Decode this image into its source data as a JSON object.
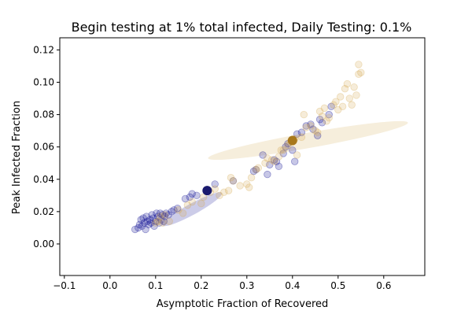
{
  "chart_data": {
    "type": "scatter",
    "title": "Begin testing at 1% total infected, Daily Testing: 0.1%",
    "xlabel": "Asymptotic Fraction of Recovered",
    "ylabel": "Peak Infected Fraction",
    "xlim": [
      -0.11,
      0.69
    ],
    "ylim": [
      -0.0195,
      0.1275
    ],
    "xticks": [
      -0.1,
      0.0,
      0.1,
      0.2,
      0.3,
      0.4,
      0.5,
      0.6
    ],
    "xtick_labels": [
      "−0.1",
      "0.0",
      "0.1",
      "0.2",
      "0.3",
      "0.4",
      "0.5",
      "0.6"
    ],
    "yticks": [
      0.0,
      0.02,
      0.04,
      0.06,
      0.08,
      0.1,
      0.12
    ],
    "ytick_labels": [
      "0.00",
      "0.02",
      "0.04",
      "0.06",
      "0.08",
      "0.10",
      "0.12"
    ],
    "grid": false,
    "legend": "none",
    "series": [
      {
        "color": "#00008b",
        "points": [
          [
            0.055,
            0.009
          ],
          [
            0.062,
            0.01
          ],
          [
            0.065,
            0.012
          ],
          [
            0.068,
            0.015
          ],
          [
            0.07,
            0.011
          ],
          [
            0.073,
            0.016
          ],
          [
            0.075,
            0.013
          ],
          [
            0.078,
            0.009
          ],
          [
            0.08,
            0.017
          ],
          [
            0.082,
            0.014
          ],
          [
            0.085,
            0.012
          ],
          [
            0.088,
            0.015
          ],
          [
            0.09,
            0.013
          ],
          [
            0.092,
            0.018
          ],
          [
            0.095,
            0.016
          ],
          [
            0.097,
            0.011
          ],
          [
            0.1,
            0.014
          ],
          [
            0.102,
            0.019
          ],
          [
            0.105,
            0.017
          ],
          [
            0.108,
            0.013
          ],
          [
            0.11,
            0.019
          ],
          [
            0.112,
            0.015
          ],
          [
            0.115,
            0.018
          ],
          [
            0.118,
            0.014
          ],
          [
            0.12,
            0.017
          ],
          [
            0.123,
            0.019
          ],
          [
            0.128,
            0.018
          ],
          [
            0.135,
            0.02
          ],
          [
            0.14,
            0.021
          ],
          [
            0.148,
            0.022
          ],
          [
            0.165,
            0.028
          ],
          [
            0.175,
            0.029
          ],
          [
            0.18,
            0.031
          ],
          [
            0.19,
            0.03
          ],
          [
            0.23,
            0.037
          ],
          [
            0.27,
            0.039
          ],
          [
            0.315,
            0.045
          ],
          [
            0.32,
            0.046
          ],
          [
            0.335,
            0.055
          ],
          [
            0.345,
            0.043
          ],
          [
            0.35,
            0.049
          ],
          [
            0.36,
            0.052
          ],
          [
            0.365,
            0.051
          ],
          [
            0.37,
            0.048
          ],
          [
            0.38,
            0.056
          ],
          [
            0.385,
            0.06
          ],
          [
            0.39,
            0.062
          ],
          [
            0.4,
            0.058
          ],
          [
            0.405,
            0.051
          ],
          [
            0.41,
            0.068
          ],
          [
            0.42,
            0.069
          ],
          [
            0.43,
            0.073
          ],
          [
            0.44,
            0.074
          ],
          [
            0.445,
            0.071
          ],
          [
            0.455,
            0.067
          ],
          [
            0.46,
            0.077
          ],
          [
            0.465,
            0.075
          ],
          [
            0.48,
            0.08
          ],
          [
            0.485,
            0.085
          ]
        ],
        "mean": [
          0.213,
          0.033
        ],
        "ellipse": {
          "center": [
            0.18,
            0.0215
          ],
          "semi_major": [
            0.245,
            0.0315
          ],
          "semi_minor_endpoint": [
            0.19,
            0.0195
          ]
        }
      },
      {
        "color": "#d4aa50",
        "points": [
          [
            0.1,
            0.013
          ],
          [
            0.105,
            0.014
          ],
          [
            0.11,
            0.017
          ],
          [
            0.115,
            0.013
          ],
          [
            0.12,
            0.018
          ],
          [
            0.13,
            0.014
          ],
          [
            0.15,
            0.021
          ],
          [
            0.16,
            0.019
          ],
          [
            0.17,
            0.024
          ],
          [
            0.18,
            0.026
          ],
          [
            0.2,
            0.025
          ],
          [
            0.205,
            0.029
          ],
          [
            0.22,
            0.032
          ],
          [
            0.23,
            0.034
          ],
          [
            0.24,
            0.03
          ],
          [
            0.25,
            0.032
          ],
          [
            0.26,
            0.033
          ],
          [
            0.265,
            0.041
          ],
          [
            0.27,
            0.039
          ],
          [
            0.285,
            0.036
          ],
          [
            0.3,
            0.037
          ],
          [
            0.305,
            0.035
          ],
          [
            0.31,
            0.041
          ],
          [
            0.32,
            0.046
          ],
          [
            0.325,
            0.047
          ],
          [
            0.34,
            0.05
          ],
          [
            0.345,
            0.053
          ],
          [
            0.355,
            0.052
          ],
          [
            0.36,
            0.051
          ],
          [
            0.37,
            0.054
          ],
          [
            0.375,
            0.058
          ],
          [
            0.38,
            0.058
          ],
          [
            0.39,
            0.061
          ],
          [
            0.395,
            0.063
          ],
          [
            0.4,
            0.064
          ],
          [
            0.405,
            0.065
          ],
          [
            0.41,
            0.055
          ],
          [
            0.42,
            0.066
          ],
          [
            0.425,
            0.08
          ],
          [
            0.43,
            0.072
          ],
          [
            0.44,
            0.073
          ],
          [
            0.45,
            0.07
          ],
          [
            0.455,
            0.069
          ],
          [
            0.46,
            0.082
          ],
          [
            0.465,
            0.079
          ],
          [
            0.47,
            0.084
          ],
          [
            0.475,
            0.076
          ],
          [
            0.48,
            0.078
          ],
          [
            0.49,
            0.086
          ],
          [
            0.495,
            0.088
          ],
          [
            0.5,
            0.083
          ],
          [
            0.505,
            0.091
          ],
          [
            0.51,
            0.085
          ],
          [
            0.515,
            0.096
          ],
          [
            0.52,
            0.099
          ],
          [
            0.525,
            0.09
          ],
          [
            0.53,
            0.086
          ],
          [
            0.535,
            0.097
          ],
          [
            0.54,
            0.092
          ],
          [
            0.545,
            0.105
          ],
          [
            0.545,
            0.111
          ],
          [
            0.55,
            0.106
          ]
        ],
        "mean": [
          0.4,
          0.064
        ],
        "ellipse": {
          "center": [
            0.434,
            0.064
          ],
          "semi_major": [
            0.215,
            0.053
          ],
          "semi_minor_endpoint": [
            0.424,
            0.0678
          ]
        }
      }
    ]
  }
}
